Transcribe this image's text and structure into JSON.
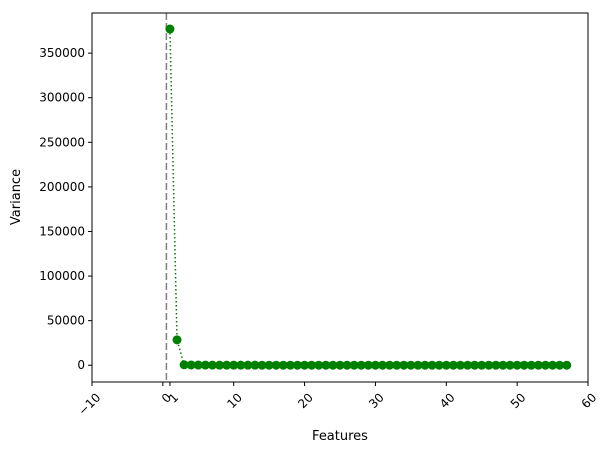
{
  "chart_data": {
    "type": "scatter",
    "title": "",
    "xlabel": "Features",
    "ylabel": "Variance",
    "xlim": [
      -10,
      60
    ],
    "ylim": [
      -18800,
      395000
    ],
    "x_ticks": [
      -10,
      0,
      1,
      10,
      20,
      30,
      40,
      50,
      60
    ],
    "x_tick_labels": [
      "−10",
      "0",
      "1",
      "10",
      "20",
      "30",
      "40",
      "50",
      "60"
    ],
    "y_ticks": [
      0,
      50000,
      100000,
      150000,
      200000,
      250000,
      300000,
      350000
    ],
    "y_tick_labels": [
      "0",
      "50000",
      "100000",
      "150000",
      "200000",
      "250000",
      "300000",
      "350000"
    ],
    "x_tick_rotation": 45,
    "grid": false,
    "legend": "none",
    "vline": {
      "x": 0.5,
      "style": "dashed",
      "color": "#808080"
    },
    "series": [
      {
        "color": "#008000",
        "line_style": "dotted",
        "marker": "circle",
        "x": [
          1,
          2,
          3,
          4,
          5,
          6,
          7,
          8,
          9,
          10,
          11,
          12,
          13,
          14,
          15,
          16,
          17,
          18,
          19,
          20,
          21,
          22,
          23,
          24,
          25,
          26,
          27,
          28,
          29,
          30,
          31,
          32,
          33,
          34,
          35,
          36,
          37,
          38,
          39,
          40,
          41,
          42,
          43,
          44,
          45,
          46,
          47,
          48,
          49,
          50,
          51,
          52,
          53,
          54,
          55,
          56,
          57
        ],
        "values": [
          377000,
          28500,
          500,
          300,
          200,
          150,
          120,
          100,
          90,
          80,
          70,
          60,
          55,
          50,
          45,
          40,
          35,
          30,
          28,
          25,
          22,
          20,
          18,
          16,
          14,
          12,
          10,
          9,
          8,
          7,
          6,
          5,
          4,
          3,
          3,
          2,
          2,
          2,
          1,
          1,
          1,
          1,
          1,
          1,
          1,
          0,
          0,
          0,
          0,
          0,
          0,
          0,
          0,
          0,
          0,
          0,
          0
        ]
      }
    ]
  }
}
